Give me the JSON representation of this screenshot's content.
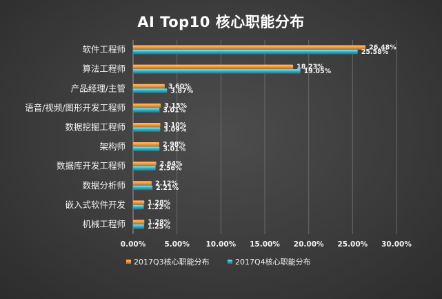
{
  "chart_data": {
    "type": "bar",
    "orientation": "horizontal",
    "title": "AI Top10 核心职能分布",
    "categories": [
      "软件工程师",
      "算法工程师",
      "产品经理/主管",
      "语音/视频/图形开发工程师",
      "数据挖掘工程师",
      "架构师",
      "数据库开发工程师",
      "数据分析师",
      "嵌入式软件开发",
      "机械工程师"
    ],
    "series": [
      {
        "name": "2017Q3核心职能分布",
        "color": "#f39c3a",
        "values": [
          26.48,
          18.23,
          3.6,
          3.15,
          3.1,
          2.98,
          2.64,
          2.12,
          1.28,
          1.28
        ],
        "labels": [
          "26.48%",
          "18.23%",
          "3.60%",
          "3.15%",
          "3.10%",
          "2.98%",
          "2.64%",
          "2.12%",
          "1.28%",
          "1.28%"
        ]
      },
      {
        "name": "2017Q4核心职能分布",
        "color": "#2bb5c9",
        "values": [
          25.58,
          19.05,
          3.87,
          3.01,
          3.09,
          3.01,
          2.56,
          2.21,
          1.22,
          1.25
        ],
        "labels": [
          "25.58%",
          "19.05%",
          "3.87%",
          "3.01%",
          "3.09%",
          "3.01%",
          "2.56%",
          "2.21%",
          "1.22%",
          "1.25%"
        ]
      }
    ],
    "xlim": [
      0,
      30
    ],
    "xticks": [
      0,
      5,
      10,
      15,
      20,
      25,
      30
    ],
    "xtick_labels": [
      "0.00%",
      "5.00%",
      "10.00%",
      "15.00%",
      "20.00%",
      "25.00%",
      "30.00%"
    ],
    "xlabel": "",
    "ylabel": "",
    "grid": "vertical",
    "legend_position": "bottom"
  }
}
